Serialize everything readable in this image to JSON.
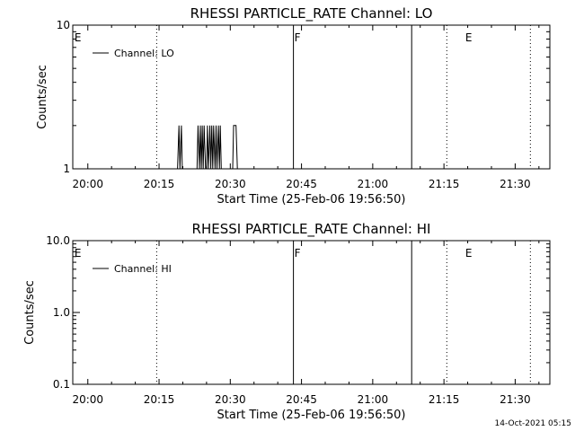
{
  "chart_data": [
    {
      "type": "line",
      "title": "RHESSI PARTICLE_RATE Channel: LO",
      "xlabel": "Start Time (25-Feb-06 19:56:50)",
      "ylabel": "Counts/sec",
      "x_unit": "minutes of day",
      "xlim": [
        1196.83,
        1297.3
      ],
      "ylim": [
        1,
        10
      ],
      "yscale": "log",
      "x_ticks": [
        "20:00",
        "20:15",
        "20:30",
        "20:45",
        "21:00",
        "21:15",
        "21:30"
      ],
      "y_ticks": [
        "1",
        "10"
      ],
      "legend": {
        "entries": [
          "Channel: LO"
        ],
        "position": "top-left"
      },
      "series": [
        {
          "name": "Channel: LO",
          "x": [
            1218.9,
            1219.2,
            1219.4,
            1219.7,
            1219.9,
            1223.0,
            1223.2,
            1223.5,
            1223.7,
            1223.9,
            1224.1,
            1224.3,
            1224.5,
            1224.8,
            1225.0,
            1225.2,
            1225.4,
            1225.7,
            1225.9,
            1226.1,
            1226.3,
            1226.5,
            1226.8,
            1227.0,
            1227.2,
            1227.5,
            1227.7,
            1227.9,
            1228.1,
            1228.4,
            1230.5,
            1230.7,
            1231.0,
            1231.2,
            1231.5
          ],
          "y": [
            1,
            2,
            1,
            2,
            1,
            1,
            2,
            1,
            2,
            1,
            2,
            1,
            2,
            1,
            1,
            2,
            1,
            2,
            1,
            2,
            1,
            2,
            1,
            2,
            1,
            2,
            1,
            2,
            1,
            1,
            1,
            2,
            2,
            2,
            1
          ]
        }
      ],
      "annotations": [
        {
          "label": "E",
          "x": 1197.0
        },
        {
          "label": "F",
          "x": 1243.3
        },
        {
          "label": "E",
          "x": 1279.3
        }
      ],
      "vlines": [
        {
          "x": 1214.5,
          "style": "dotted"
        },
        {
          "x": 1243.3,
          "style": "solid"
        },
        {
          "x": 1268.2,
          "style": "solid"
        },
        {
          "x": 1275.6,
          "style": "dotted"
        },
        {
          "x": 1293.2,
          "style": "dotted"
        }
      ]
    },
    {
      "type": "line",
      "title": "RHESSI PARTICLE_RATE Channel: HI",
      "xlabel": "Start Time (25-Feb-06 19:56:50)",
      "ylabel": "Counts/sec",
      "x_unit": "minutes of day",
      "xlim": [
        1196.83,
        1297.3
      ],
      "ylim": [
        0.1,
        10
      ],
      "yscale": "log",
      "x_ticks": [
        "20:00",
        "20:15",
        "20:30",
        "20:45",
        "21:00",
        "21:15",
        "21:30"
      ],
      "y_ticks": [
        "0.1",
        "1.0",
        "10.0"
      ],
      "legend": {
        "entries": [
          "Channel: HI"
        ],
        "position": "top-left"
      },
      "series": [
        {
          "name": "Channel: HI",
          "x": [],
          "y": []
        }
      ],
      "annotations": [
        {
          "label": "E",
          "x": 1197.0
        },
        {
          "label": "F",
          "x": 1243.3
        },
        {
          "label": "E",
          "x": 1279.3
        }
      ],
      "vlines": [
        {
          "x": 1214.5,
          "style": "dotted"
        },
        {
          "x": 1243.3,
          "style": "solid"
        },
        {
          "x": 1268.2,
          "style": "solid"
        },
        {
          "x": 1275.6,
          "style": "dotted"
        },
        {
          "x": 1293.2,
          "style": "dotted"
        }
      ]
    }
  ],
  "footer": {
    "timestamp": "14-Oct-2021 05:15"
  }
}
